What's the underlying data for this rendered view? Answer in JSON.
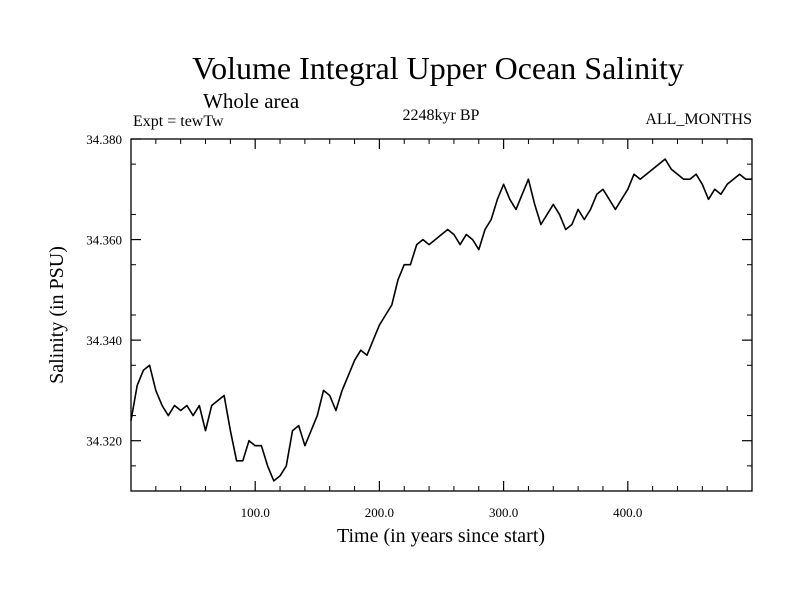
{
  "chart_data": {
    "type": "line",
    "title": "Volume Integral Upper Ocean Salinity",
    "subtitle": "Whole area",
    "experiment": "Expt = tewTw",
    "period": "2248kyr BP",
    "months": "ALL_MONTHS",
    "xlabel": "Time (in years since start)",
    "ylabel": "Salinity (in PSU)",
    "xlim": [
      0,
      500
    ],
    "ylim": [
      34.31,
      34.38
    ],
    "x_ticks": [
      100,
      200,
      300,
      400
    ],
    "x_tick_labels": [
      "100.0",
      "200.0",
      "300.0",
      "400.0"
    ],
    "y_ticks": [
      34.32,
      34.34,
      34.36,
      34.38
    ],
    "y_tick_labels": [
      "34.320",
      "34.340",
      "34.360",
      "34.380"
    ],
    "grid": false,
    "series": [
      {
        "name": "Salinity",
        "x": [
          0,
          5,
          10,
          15,
          20,
          25,
          30,
          35,
          40,
          45,
          50,
          55,
          60,
          65,
          70,
          75,
          80,
          85,
          90,
          95,
          100,
          105,
          110,
          115,
          120,
          125,
          130,
          135,
          140,
          145,
          150,
          155,
          160,
          165,
          170,
          175,
          180,
          185,
          190,
          195,
          200,
          205,
          210,
          215,
          220,
          225,
          230,
          235,
          240,
          245,
          250,
          255,
          260,
          265,
          270,
          275,
          280,
          285,
          290,
          295,
          300,
          305,
          310,
          315,
          320,
          325,
          330,
          335,
          340,
          345,
          350,
          355,
          360,
          365,
          370,
          375,
          380,
          385,
          390,
          395,
          400,
          405,
          410,
          415,
          420,
          425,
          430,
          435,
          440,
          445,
          450,
          455,
          460,
          465,
          470,
          475,
          480,
          485,
          490,
          495,
          500
        ],
        "y": [
          34.324,
          34.331,
          34.334,
          34.335,
          34.33,
          34.327,
          34.325,
          34.327,
          34.326,
          34.327,
          34.325,
          34.327,
          34.322,
          34.327,
          34.328,
          34.329,
          34.322,
          34.316,
          34.316,
          34.32,
          34.319,
          34.319,
          34.315,
          34.312,
          34.313,
          34.315,
          34.322,
          34.323,
          34.319,
          34.322,
          34.325,
          34.33,
          34.329,
          34.326,
          34.33,
          34.333,
          34.336,
          34.338,
          34.337,
          34.34,
          34.343,
          34.345,
          34.347,
          34.352,
          34.355,
          34.355,
          34.359,
          34.36,
          34.359,
          34.36,
          34.361,
          34.362,
          34.361,
          34.359,
          34.361,
          34.36,
          34.358,
          34.362,
          34.364,
          34.368,
          34.371,
          34.368,
          34.366,
          34.369,
          34.372,
          34.367,
          34.363,
          34.365,
          34.367,
          34.365,
          34.362,
          34.363,
          34.366,
          34.364,
          34.366,
          34.369,
          34.37,
          34.368,
          34.366,
          34.368,
          34.37,
          34.373,
          34.372,
          34.373,
          34.374,
          34.375,
          34.376,
          34.374,
          34.373,
          34.372,
          34.372,
          34.373,
          34.371,
          34.368,
          34.37,
          34.369,
          34.371,
          34.372,
          34.373,
          34.372,
          34.372
        ]
      }
    ]
  }
}
